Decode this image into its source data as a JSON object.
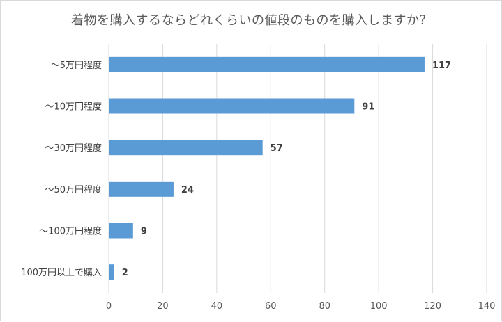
{
  "chart_data": {
    "type": "bar",
    "orientation": "horizontal",
    "title": "着物を購入するならどれくらいの値段のものを購入しますか？",
    "categories": [
      "〜5万円程度",
      "〜10万円程度",
      "〜30万円程度",
      "〜50万円程度",
      "〜100万円程度",
      "100万円以上で購入"
    ],
    "values": [
      117,
      91,
      57,
      24,
      9,
      2
    ],
    "xlim": [
      0,
      140
    ],
    "xticks": [
      "0",
      "20",
      "40",
      "60",
      "80",
      "100",
      "120",
      "140"
    ],
    "grid": true,
    "bar_color": "#5b9bd5"
  }
}
